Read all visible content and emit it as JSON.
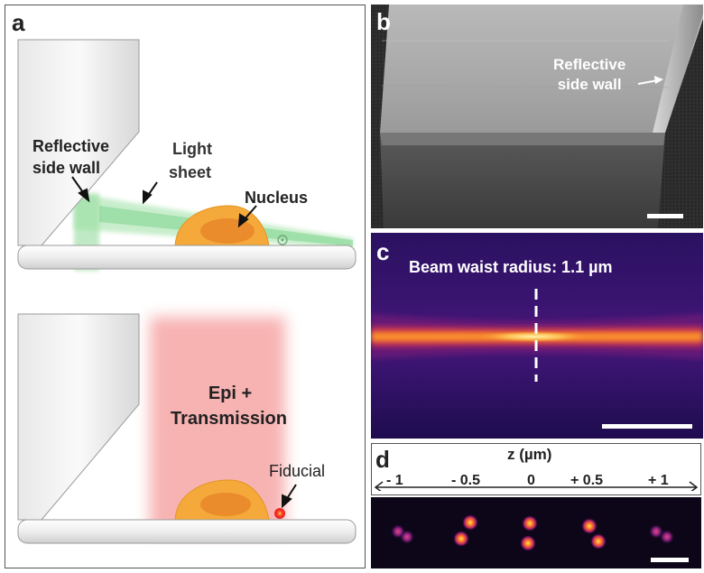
{
  "panels": {
    "a": {
      "letter": "a",
      "top": {
        "reflective_label_line1": "Reflective",
        "reflective_label_line2": "side wall",
        "light_sheet_line1": "Light",
        "light_sheet_line2": "sheet",
        "nucleus_label": "Nucleus"
      },
      "bottom": {
        "epi_line1": "Epi +",
        "epi_line2": "Transmission",
        "fiducial_label": "Fiducial"
      },
      "colors": {
        "light_sheet": "#7fd28a",
        "cell": "#f4a93a",
        "nucleus": "#e8862a",
        "epi_glow": "#f48a8a",
        "fiducial": "#e8322a"
      }
    },
    "b": {
      "letter": "b",
      "label_line1": "Reflective",
      "label_line2": "side wall"
    },
    "c": {
      "letter": "c",
      "title": "Beam waist radius: 1.1 µm"
    },
    "d": {
      "letter": "d",
      "axis_title": "z (µm)",
      "z_values": [
        "- 1",
        "- 0.5",
        "0",
        "+ 0.5",
        "+ 1"
      ]
    }
  }
}
